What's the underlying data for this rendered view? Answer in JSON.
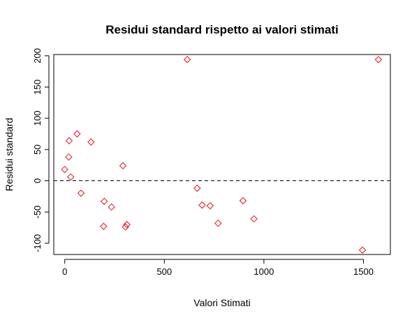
{
  "chart_data": {
    "type": "scatter",
    "title": "Residui standard rispetto ai valori stimati",
    "xlabel": "Valori Stimati",
    "ylabel": "Residui standard",
    "xlim": [
      -55,
      1635
    ],
    "ylim": [
      -118,
      202
    ],
    "x_ticks": [
      0,
      500,
      1000,
      1500
    ],
    "y_ticks": [
      -100,
      -50,
      0,
      50,
      100,
      150,
      200
    ],
    "reference_line": {
      "y": 0,
      "style": "dashed"
    },
    "marker": "diamond",
    "marker_color": "#e8101e",
    "grid": false,
    "series": [
      {
        "x": [
          0,
          20,
          22,
          30,
          62,
          82,
          132,
          195,
          198,
          235,
          292,
          305,
          312,
          615,
          665,
          690,
          730,
          770,
          895,
          950,
          1495,
          1575
        ],
        "y": [
          18,
          38,
          64,
          6,
          75,
          -20,
          62,
          -73,
          -33,
          -42,
          24,
          -74,
          -70,
          194,
          -12,
          -39,
          -40,
          -68,
          -32,
          -61,
          -111,
          194
        ]
      }
    ]
  }
}
